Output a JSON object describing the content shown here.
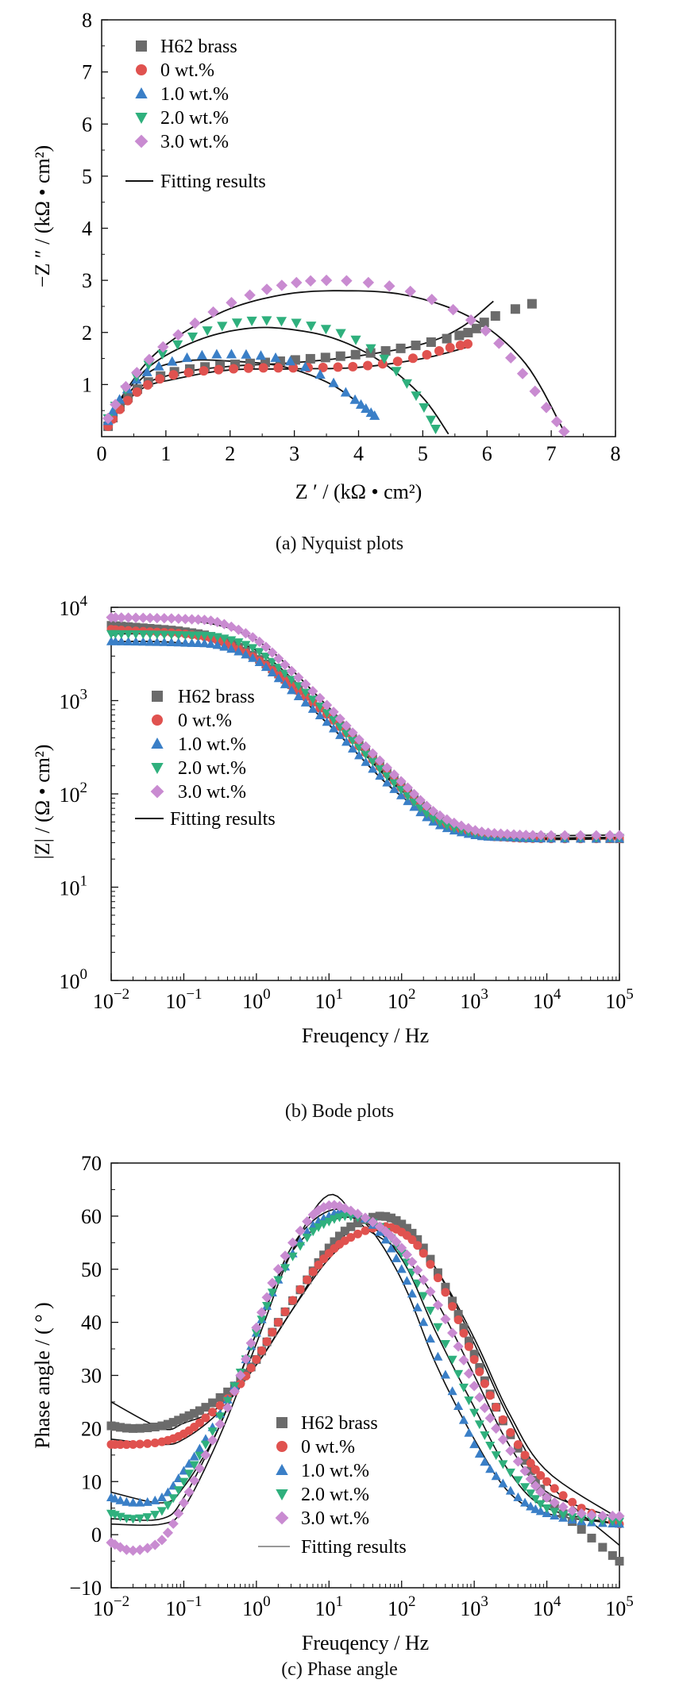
{
  "captions": {
    "a": "(a) Nyquist plots",
    "b": "(b) Bode plots",
    "c": "(c) Phase angle"
  },
  "legend": {
    "fit_a": "Fitting results",
    "fit_b": "Fitting results",
    "fit_c": "Fitting results"
  },
  "colors": {
    "H62 brass": "#6b6b6b",
    "0 wt.%": "#e0524f",
    "1.0 wt.%": "#3a7fc7",
    "2.0 wt.%": "#2fb07d",
    "3.0 wt.%": "#c98bd1",
    "fit": "#111111"
  },
  "markers": {
    "H62 brass": "square",
    "0 wt.%": "circle",
    "1.0 wt.%": "triangle-up",
    "2.0 wt.%": "triangle-down",
    "3.0 wt.%": "diamond"
  },
  "chart_data": [
    {
      "type": "scatter",
      "panel": "a",
      "xlabel": "Z ′ / (kΩ • cm²)",
      "ylabel": "−Z ″ / (kΩ • cm²)",
      "xlim": [
        0,
        8
      ],
      "ylim": [
        0,
        8
      ],
      "xticks": [
        "0",
        "1",
        "2",
        "3",
        "4",
        "5",
        "6",
        "7",
        "8"
      ],
      "yticks": [
        "1",
        "2",
        "3",
        "4",
        "5",
        "6",
        "7",
        "8"
      ],
      "legend_position": "top-left",
      "series": [
        {
          "name": "H62 brass",
          "x": [
            0.1,
            0.3,
            0.6,
            1.0,
            1.5,
            2.0,
            2.5,
            3.0,
            3.5,
            4.0,
            4.5,
            5.0,
            5.5,
            5.8,
            6.1,
            6.7
          ],
          "y": [
            0.2,
            0.6,
            0.95,
            1.2,
            1.32,
            1.38,
            1.42,
            1.47,
            1.52,
            1.58,
            1.66,
            1.78,
            1.92,
            2.05,
            2.3,
            2.55
          ]
        },
        {
          "name": "0 wt.%",
          "x": [
            0.1,
            0.3,
            0.6,
            1.0,
            1.5,
            2.0,
            2.5,
            3.0,
            3.5,
            4.0,
            4.5,
            5.0,
            5.4,
            5.7
          ],
          "y": [
            0.2,
            0.55,
            0.9,
            1.15,
            1.25,
            1.3,
            1.32,
            1.32,
            1.33,
            1.35,
            1.42,
            1.55,
            1.7,
            1.78
          ]
        },
        {
          "name": "1.0 wt.%",
          "x": [
            0.1,
            0.3,
            0.6,
            1.0,
            1.5,
            2.0,
            2.5,
            3.0,
            3.5,
            3.9,
            4.1,
            4.25
          ],
          "y": [
            0.3,
            0.75,
            1.15,
            1.4,
            1.55,
            1.58,
            1.55,
            1.42,
            1.12,
            0.75,
            0.55,
            0.4
          ]
        },
        {
          "name": "2.0 wt.%",
          "x": [
            0.1,
            0.4,
            0.8,
            1.3,
            1.8,
            2.3,
            2.8,
            3.3,
            3.8,
            4.3,
            4.7,
            5.0,
            5.2
          ],
          "y": [
            0.35,
            0.95,
            1.45,
            1.85,
            2.1,
            2.22,
            2.22,
            2.12,
            1.95,
            1.6,
            1.1,
            0.6,
            0.15
          ]
        },
        {
          "name": "3.0 wt.%",
          "x": [
            0.1,
            0.4,
            0.8,
            1.3,
            1.9,
            2.5,
            3.0,
            3.5,
            4.2,
            4.9,
            5.6,
            6.1,
            6.5,
            6.9,
            7.2
          ],
          "y": [
            0.35,
            1.0,
            1.55,
            2.05,
            2.5,
            2.8,
            2.95,
            3.0,
            2.95,
            2.75,
            2.35,
            1.9,
            1.3,
            0.6,
            0.1
          ]
        }
      ],
      "fits": [
        {
          "name": "fit-h62",
          "x": [
            0.1,
            0.6,
            1.2,
            2.0,
            3.0,
            4.0,
            5.0,
            5.6,
            6.1
          ],
          "y": [
            0.25,
            0.95,
            1.22,
            1.35,
            1.42,
            1.55,
            1.78,
            2.1,
            2.6
          ]
        },
        {
          "name": "fit-0",
          "x": [
            0.1,
            0.6,
            1.2,
            2.0,
            3.0,
            4.0,
            5.0,
            5.7
          ],
          "y": [
            0.25,
            0.9,
            1.12,
            1.28,
            1.3,
            1.33,
            1.5,
            1.72
          ]
        },
        {
          "name": "fit-1",
          "x": [
            0.1,
            0.7,
            1.3,
            2.0,
            2.8,
            3.5,
            4.0,
            4.25
          ],
          "y": [
            0.3,
            1.2,
            1.45,
            1.45,
            1.35,
            1.05,
            0.65,
            0.4
          ]
        },
        {
          "name": "fit-2",
          "x": [
            0.1,
            0.7,
            1.5,
            2.3,
            3.0,
            3.7,
            4.4,
            5.0,
            5.4
          ],
          "y": [
            0.35,
            1.3,
            1.85,
            2.08,
            2.05,
            1.85,
            1.4,
            0.75,
            0.05
          ]
        },
        {
          "name": "fit-3",
          "x": [
            0.1,
            0.8,
            1.8,
            2.8,
            3.8,
            4.8,
            5.8,
            6.6,
            7.2
          ],
          "y": [
            0.35,
            1.55,
            2.35,
            2.72,
            2.8,
            2.7,
            2.25,
            1.4,
            0.1
          ]
        }
      ]
    },
    {
      "type": "scatter",
      "panel": "b",
      "xlabel": "Freuqency / Hz",
      "ylabel": "|Z| / (Ω • cm²)",
      "xscale": "log",
      "yscale": "log",
      "xlim": [
        0.01,
        100000
      ],
      "ylim": [
        1,
        10000
      ],
      "xtick_exponents": [
        "−2",
        "−1",
        "0",
        "1",
        "2",
        "3",
        "4",
        "5"
      ],
      "ytick_exponents": [
        "0",
        "1",
        "2",
        "3",
        "4"
      ],
      "legend_position": "middle-left",
      "series": [
        {
          "name": "H62 brass",
          "x": [
            0.01,
            0.03,
            0.1,
            0.3,
            1,
            3,
            10,
            30,
            100,
            300,
            1000,
            3000,
            10000,
            100000
          ],
          "y": [
            6400,
            6000,
            5500,
            4600,
            2900,
            1500,
            700,
            300,
            120,
            55,
            38,
            35,
            34,
            33
          ]
        },
        {
          "name": "0 wt.%",
          "x": [
            0.01,
            0.03,
            0.1,
            0.3,
            1,
            3,
            10,
            30,
            100,
            300,
            1000,
            3000,
            10000,
            100000
          ],
          "y": [
            5800,
            5500,
            5200,
            4400,
            2800,
            1450,
            680,
            290,
            115,
            52,
            37,
            34,
            33,
            33
          ]
        },
        {
          "name": "1.0 wt.%",
          "x": [
            0.01,
            0.03,
            0.1,
            0.3,
            1,
            3,
            10,
            30,
            100,
            300,
            1000,
            3000,
            10000,
            100000
          ],
          "y": [
            4300,
            4250,
            4150,
            3900,
            2700,
            1300,
            560,
            230,
            95,
            48,
            36,
            34,
            33,
            33
          ]
        },
        {
          "name": "2.0 wt.%",
          "x": [
            0.01,
            0.03,
            0.1,
            0.3,
            1,
            3,
            10,
            30,
            100,
            300,
            1000,
            3000,
            10000,
            100000
          ],
          "y": [
            5200,
            5150,
            5050,
            4800,
            3500,
            1700,
            700,
            280,
            110,
            52,
            38,
            35,
            34,
            34
          ]
        },
        {
          "name": "3.0 wt.%",
          "x": [
            0.01,
            0.03,
            0.1,
            0.3,
            1,
            3,
            10,
            30,
            100,
            300,
            1000,
            3000,
            10000,
            100000
          ],
          "y": [
            7800,
            7700,
            7500,
            6900,
            4500,
            2100,
            850,
            340,
            135,
            62,
            41,
            37,
            36,
            36
          ]
        }
      ],
      "fits": [
        {
          "name": "fit-h62",
          "x": [
            0.01,
            0.1,
            1,
            10,
            100,
            1000,
            100000
          ],
          "y": [
            6400,
            5400,
            2850,
            690,
            118,
            38,
            33
          ]
        },
        {
          "name": "fit-0",
          "x": [
            0.01,
            0.1,
            1,
            10,
            100,
            1000,
            100000
          ],
          "y": [
            5800,
            5150,
            2750,
            670,
            113,
            37,
            33
          ]
        },
        {
          "name": "fit-1",
          "x": [
            0.01,
            0.1,
            1,
            10,
            100,
            1000,
            100000
          ],
          "y": [
            4300,
            4100,
            2650,
            550,
            94,
            36,
            33
          ]
        },
        {
          "name": "fit-2",
          "x": [
            0.01,
            0.1,
            1,
            10,
            100,
            1000,
            100000
          ],
          "y": [
            5200,
            5000,
            3450,
            690,
            108,
            38,
            34
          ]
        },
        {
          "name": "fit-3",
          "x": [
            0.01,
            0.1,
            1,
            10,
            100,
            1000,
            100000
          ],
          "y": [
            7800,
            7450,
            4450,
            840,
            133,
            41,
            36
          ]
        }
      ]
    },
    {
      "type": "scatter",
      "panel": "c",
      "xlabel": "Freuqency / Hz",
      "ylabel": "Phase angle / ( ° )",
      "xscale": "log",
      "xlim": [
        0.01,
        100000
      ],
      "ylim": [
        -10,
        70
      ],
      "xtick_exponents": [
        "−2",
        "−1",
        "0",
        "1",
        "2",
        "3",
        "4",
        "5"
      ],
      "yticks": [
        "−10",
        "0",
        "10",
        "20",
        "30",
        "40",
        "50",
        "60",
        "70"
      ],
      "legend_position": "bottom-center",
      "series": [
        {
          "name": "H62 brass",
          "x": [
            0.01,
            0.02,
            0.05,
            0.1,
            0.2,
            0.5,
            1,
            2,
            5,
            10,
            20,
            50,
            100,
            200,
            500,
            1000,
            2000,
            5000,
            10000,
            30000,
            100000
          ],
          "y": [
            20.5,
            20,
            20.5,
            22,
            24,
            28,
            33,
            40,
            48,
            54,
            58,
            60,
            58.5,
            54,
            44,
            34,
            24,
            14,
            7,
            1,
            -5
          ]
        },
        {
          "name": "0 wt.%",
          "x": [
            0.01,
            0.02,
            0.05,
            0.1,
            0.2,
            0.5,
            1,
            2,
            5,
            10,
            20,
            50,
            100,
            200,
            500,
            1000,
            2000,
            5000,
            10000,
            30000,
            100000
          ],
          "y": [
            17,
            17,
            17.5,
            19,
            22,
            27,
            33,
            40,
            48,
            53,
            56,
            58,
            57,
            53,
            43,
            33,
            24,
            15,
            10,
            5,
            2
          ]
        },
        {
          "name": "1.0 wt.%",
          "x": [
            0.01,
            0.02,
            0.05,
            0.1,
            0.2,
            0.5,
            1,
            2,
            5,
            10,
            20,
            50,
            100,
            200,
            500,
            1000,
            2000,
            5000,
            10000,
            30000,
            100000
          ],
          "y": [
            7,
            6,
            7,
            12,
            18,
            28,
            38,
            48,
            57,
            60,
            61,
            57,
            50,
            40,
            27,
            17,
            11,
            6,
            4,
            2.5,
            2
          ]
        },
        {
          "name": "2.0 wt.%",
          "x": [
            0.01,
            0.02,
            0.05,
            0.1,
            0.2,
            0.5,
            1,
            2,
            5,
            10,
            20,
            50,
            100,
            200,
            500,
            1000,
            2000,
            5000,
            10000,
            30000,
            100000
          ],
          "y": [
            4,
            3,
            4.5,
            10,
            17,
            28,
            38,
            48,
            56,
            59,
            60,
            58,
            53,
            45,
            33,
            23,
            15,
            9,
            5,
            3,
            2.5
          ]
        },
        {
          "name": "3.0 wt.%",
          "x": [
            0.01,
            0.02,
            0.05,
            0.1,
            0.2,
            0.5,
            1,
            2,
            5,
            10,
            20,
            50,
            100,
            200,
            500,
            1000,
            2000,
            5000,
            10000,
            30000,
            100000
          ],
          "y": [
            -1.5,
            -3,
            -1,
            6,
            15,
            27,
            39,
            50,
            59,
            62,
            61,
            58,
            54,
            48,
            38,
            28,
            20,
            12,
            7,
            4,
            3.5
          ]
        }
      ],
      "fits": [
        {
          "name": "fit-h62",
          "x": [
            0.01,
            0.05,
            0.1,
            0.3,
            1,
            3,
            10,
            30,
            100,
            300,
            1000,
            3000,
            10000,
            100000
          ],
          "y": [
            25,
            20,
            21,
            24,
            32,
            42,
            53,
            59,
            58,
            50,
            36,
            22,
            10,
            -2
          ]
        },
        {
          "name": "fit-0",
          "x": [
            0.01,
            0.05,
            0.1,
            0.3,
            1,
            3,
            10,
            30,
            100,
            300,
            1000,
            3000,
            10000,
            100000
          ],
          "y": [
            18,
            17,
            18,
            23,
            32,
            42,
            52,
            57,
            57,
            50,
            37,
            23,
            12,
            3
          ]
        },
        {
          "name": "fit-1",
          "x": [
            0.01,
            0.05,
            0.1,
            0.3,
            1,
            3,
            10,
            30,
            100,
            300,
            1000,
            3000,
            10000,
            100000
          ],
          "y": [
            8,
            6,
            9,
            20,
            38,
            54,
            61,
            59,
            48,
            32,
            18,
            8,
            4,
            2
          ]
        },
        {
          "name": "fit-2",
          "x": [
            0.01,
            0.05,
            0.1,
            0.3,
            1,
            3,
            10,
            30,
            100,
            300,
            1000,
            3000,
            10000,
            100000
          ],
          "y": [
            3,
            3,
            7,
            20,
            38,
            53,
            59,
            59,
            52,
            38,
            24,
            12,
            5,
            2
          ]
        },
        {
          "name": "fit-3",
          "x": [
            0.01,
            0.05,
            0.1,
            0.3,
            1,
            3,
            10,
            30,
            100,
            300,
            1000,
            3000,
            10000,
            100000
          ],
          "y": [
            2,
            2,
            5,
            18,
            36,
            53,
            64,
            58,
            53,
            44,
            30,
            17,
            8,
            3
          ]
        }
      ]
    }
  ]
}
